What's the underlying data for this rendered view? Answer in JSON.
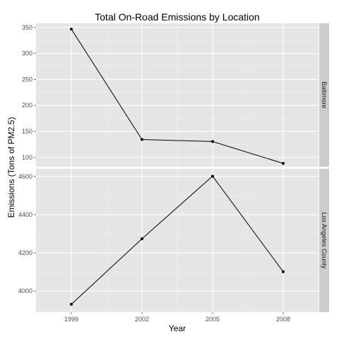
{
  "chart_data": {
    "type": "line",
    "title": "Total On-Road Emissions by Location",
    "xlabel": "Year",
    "ylabel": "Emissions (Tons of PM2.5)",
    "x": [
      1999,
      2002,
      2005,
      2008
    ],
    "xlim": [
      1997.5,
      2009.5
    ],
    "grid": true,
    "facets": [
      {
        "name": "Baltimore",
        "values": [
          346.8,
          134.3,
          130.4,
          88.3
        ],
        "ylim": [
          82,
          358
        ],
        "yticks": [
          100,
          150,
          200,
          250,
          300,
          350
        ]
      },
      {
        "name": "Los Angeles County",
        "values": [
          3931.1,
          4274.0,
          4601.4,
          4101.3
        ],
        "ylim": [
          3890,
          4640
        ],
        "yticks": [
          4000,
          4200,
          4400,
          4600
        ]
      }
    ],
    "colors": {
      "panel_bg": "#e5e5e5",
      "grid_major": "#ffffff",
      "grid_minor": "#f2f2f2",
      "strip_bg": "#cccccc",
      "line": "#000000"
    }
  }
}
